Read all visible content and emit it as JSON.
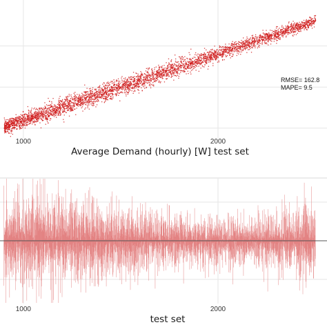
{
  "colors": {
    "scatter_points": "#d02020",
    "residual_lines": "#e07070",
    "reference_line": "#555555",
    "grid": "#e6e6e6",
    "text": "#1a1a1a"
  },
  "chart_data": [
    {
      "type": "scatter",
      "title": "",
      "xlabel": "Average Demand (hourly) [W] test set",
      "ylabel": "",
      "x_ticks": [
        1000,
        2000
      ],
      "xlim": [
        880,
        2560
      ],
      "ylim": [
        880,
        2560
      ],
      "grid": true,
      "annotations": [
        "RMSE= 162.8",
        "MAPE= 9.5"
      ],
      "series": [
        {
          "values_description_only": null,
          "x": [
            900,
            1000,
            1100,
            1200,
            1300,
            1400,
            1500,
            1600,
            1700,
            1800,
            1900,
            2000,
            2100,
            2200,
            2300,
            2400,
            2500
          ],
          "y": [
            1020,
            1100,
            1180,
            1260,
            1340,
            1420,
            1500,
            1580,
            1660,
            1750,
            1830,
            1910,
            1990,
            2070,
            2150,
            2230,
            2310
          ],
          "spread": [
            95,
            115,
            125,
            130,
            130,
            130,
            125,
            120,
            115,
            110,
            105,
            100,
            95,
            90,
            85,
            80,
            75
          ]
        }
      ]
    },
    {
      "type": "line",
      "title": "",
      "xlabel": "test set",
      "ylabel": "",
      "x_ticks": [
        1000,
        2000
      ],
      "xlim": [
        880,
        2560
      ],
      "ylim": [
        -650,
        650
      ],
      "reference_y": 0,
      "grid": true,
      "series": [
        {
          "x": [
            900,
            1000,
            1100,
            1200,
            1300,
            1400,
            1500,
            1600,
            1700,
            1800,
            1900,
            2000,
            2100,
            2200,
            2300,
            2400,
            2500
          ],
          "amplitude": [
            430,
            480,
            470,
            440,
            400,
            380,
            350,
            330,
            300,
            270,
            250,
            240,
            250,
            260,
            300,
            350,
            380
          ]
        }
      ]
    }
  ]
}
